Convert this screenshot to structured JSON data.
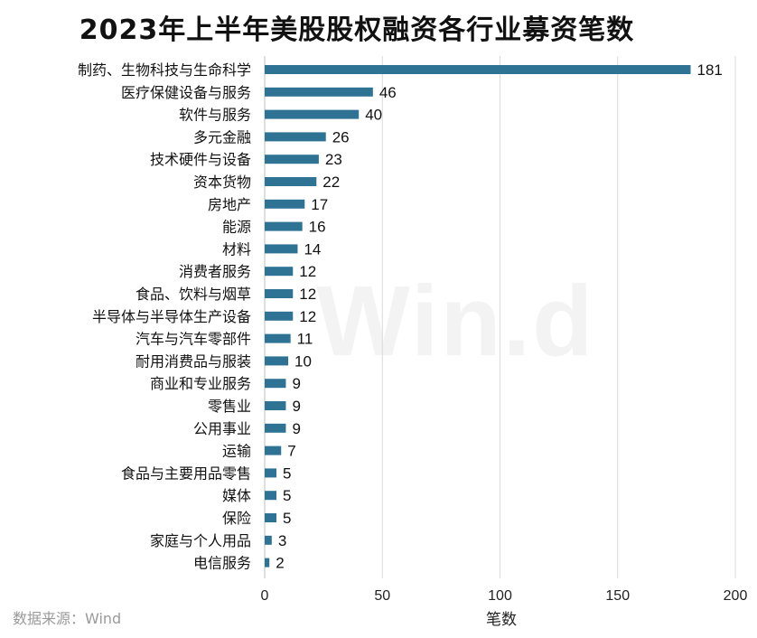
{
  "watermark": "Win.d",
  "source": "数据来源：Wind",
  "chart_data": {
    "type": "bar",
    "orientation": "horizontal",
    "title": "2023年上半年美股股权融资各行业募资笔数",
    "xlabel": "笔数",
    "ylabel": "",
    "xlim": [
      0,
      200
    ],
    "xticks": [
      0,
      50,
      100,
      150,
      200
    ],
    "grid": true,
    "bar_color": "#2e7394",
    "categories": [
      "制药、生物科技与生命科学",
      "医疗保健设备与服务",
      "软件与服务",
      "多元金融",
      "技术硬件与设备",
      "资本货物",
      "房地产",
      "能源",
      "材料",
      "消费者服务",
      "食品、饮料与烟草",
      "半导体与半导体生产设备",
      "汽车与汽车零部件",
      "耐用消费品与服装",
      "商业和专业服务",
      "零售业",
      "公用事业",
      "运输",
      "食品与主要用品零售",
      "媒体",
      "保险",
      "家庭与个人用品",
      "电信服务"
    ],
    "values": [
      181,
      46,
      40,
      26,
      23,
      22,
      17,
      16,
      14,
      12,
      12,
      12,
      11,
      10,
      9,
      9,
      9,
      7,
      5,
      5,
      5,
      3,
      2
    ]
  }
}
